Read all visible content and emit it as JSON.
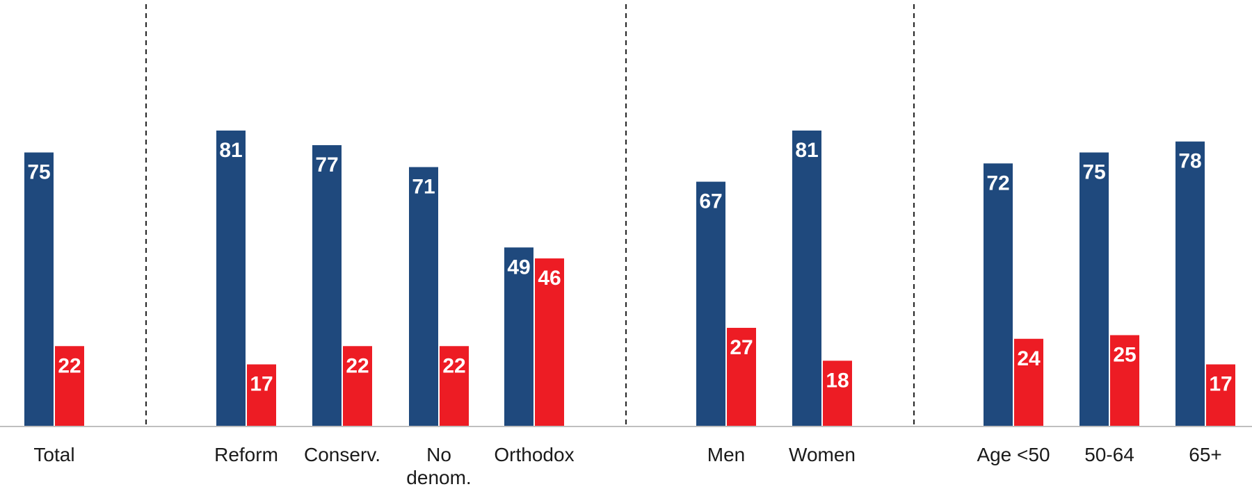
{
  "colors": {
    "series_a": "#1f497d",
    "series_b": "#ed1c24",
    "axis": "#bfbfbf",
    "divider": "#222222"
  },
  "chart_data": {
    "type": "bar",
    "categories": [
      "Total",
      "Reform",
      "Conserv.",
      "No denom.",
      "Orthodox",
      "Men",
      "Women",
      "Age <50",
      "50-64",
      "65+"
    ],
    "category_lines": [
      [
        "Total"
      ],
      [
        "Reform"
      ],
      [
        "Conserv."
      ],
      [
        "No",
        "denom."
      ],
      [
        "Orthodox"
      ],
      [
        "Men"
      ],
      [
        "Women"
      ],
      [
        "Age <50"
      ],
      [
        "50-64"
      ],
      [
        "65+"
      ]
    ],
    "groups": [
      [
        "Total"
      ],
      [
        "Reform",
        "Conserv.",
        "No denom.",
        "Orthodox"
      ],
      [
        "Men",
        "Women"
      ],
      [
        "Age <50",
        "50-64",
        "65+"
      ]
    ],
    "series": [
      {
        "values": [
          75,
          81,
          77,
          71,
          49,
          67,
          81,
          72,
          75,
          78
        ],
        "color": "#1f497d"
      },
      {
        "values": [
          22,
          17,
          22,
          22,
          46,
          27,
          18,
          24,
          25,
          17
        ],
        "color": "#ed1c24"
      }
    ],
    "ylim": [
      0,
      100
    ],
    "grid": false,
    "legend": "none"
  }
}
